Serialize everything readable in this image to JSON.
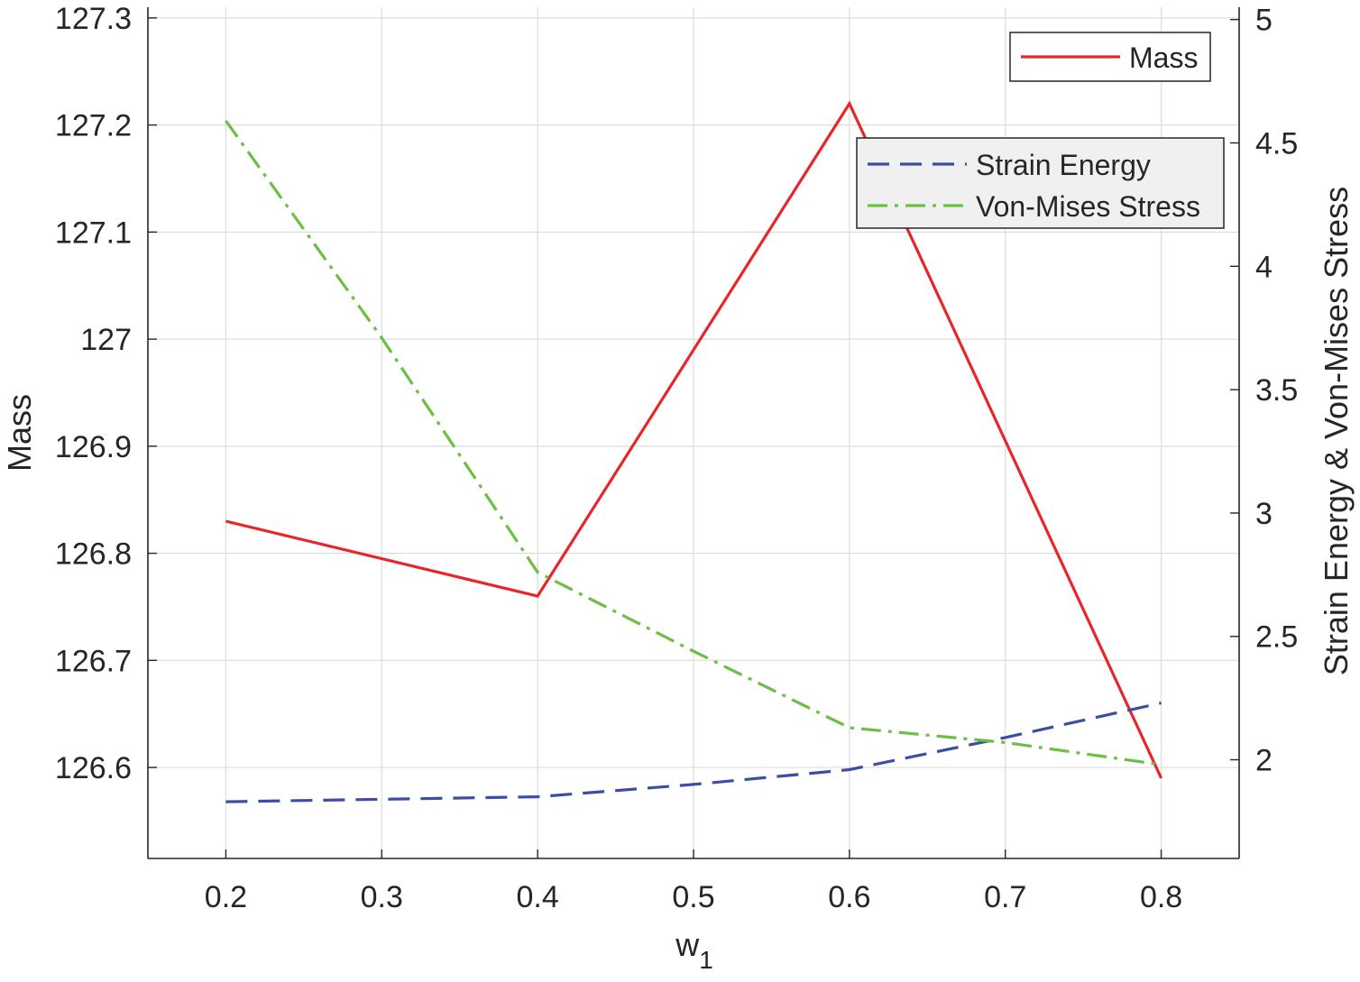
{
  "chart_data": {
    "type": "line",
    "title": "",
    "xlabel": "w",
    "xlabel_subscript": "1",
    "ylabel_left": "Mass",
    "ylabel_right": "Strain Energy & Von-Mises Stress",
    "xlim": [
      0.15,
      0.85
    ],
    "ylim_left": [
      126.515,
      127.31
    ],
    "ylim_right": [
      1.6,
      5.05
    ],
    "grid": true,
    "x_ticks": [
      0.2,
      0.3,
      0.4,
      0.5,
      0.6,
      0.7,
      0.8
    ],
    "x_tick_labels": [
      "0.2",
      "0.3",
      "0.4",
      "0.5",
      "0.6",
      "0.7",
      "0.8"
    ],
    "y_left_ticks": [
      126.6,
      126.7,
      126.8,
      126.9,
      127.0,
      127.1,
      127.2,
      127.3
    ],
    "y_left_tick_labels": [
      "126.6",
      "126.7",
      "126.8",
      "126.9",
      "127",
      "127.1",
      "127.2",
      "127.3"
    ],
    "y_right_ticks": [
      2,
      2.5,
      3,
      3.5,
      4,
      4.5,
      5
    ],
    "y_right_tick_labels": [
      "2",
      "2.5",
      "3",
      "3.5",
      "4",
      "4.5",
      "5"
    ],
    "series": [
      {
        "name": "Mass",
        "axis": "left",
        "style": "solid",
        "color": "#e8262a",
        "x": [
          0.2,
          0.4,
          0.6,
          0.8
        ],
        "y": [
          126.83,
          126.76,
          127.22,
          126.59
        ]
      },
      {
        "name": "Strain Energy",
        "axis": "right",
        "style": "dashed",
        "color": "#3a4ea3",
        "x": [
          0.2,
          0.4,
          0.5,
          0.6,
          0.7,
          0.8
        ],
        "y": [
          1.83,
          1.85,
          1.9,
          1.96,
          2.09,
          2.23
        ]
      },
      {
        "name": "Von-Mises Stress",
        "axis": "right",
        "style": "dashdot",
        "color": "#6cbf45",
        "x": [
          0.2,
          0.3,
          0.4,
          0.5,
          0.6,
          0.7,
          0.8
        ],
        "y": [
          4.59,
          3.71,
          2.76,
          2.44,
          2.13,
          2.07,
          1.98
        ]
      }
    ],
    "legends": [
      {
        "location": "top-right",
        "entries": [
          "Mass"
        ]
      },
      {
        "location": "upper-right",
        "entries": [
          "Strain Energy",
          "Von-Mises Stress"
        ]
      }
    ]
  }
}
